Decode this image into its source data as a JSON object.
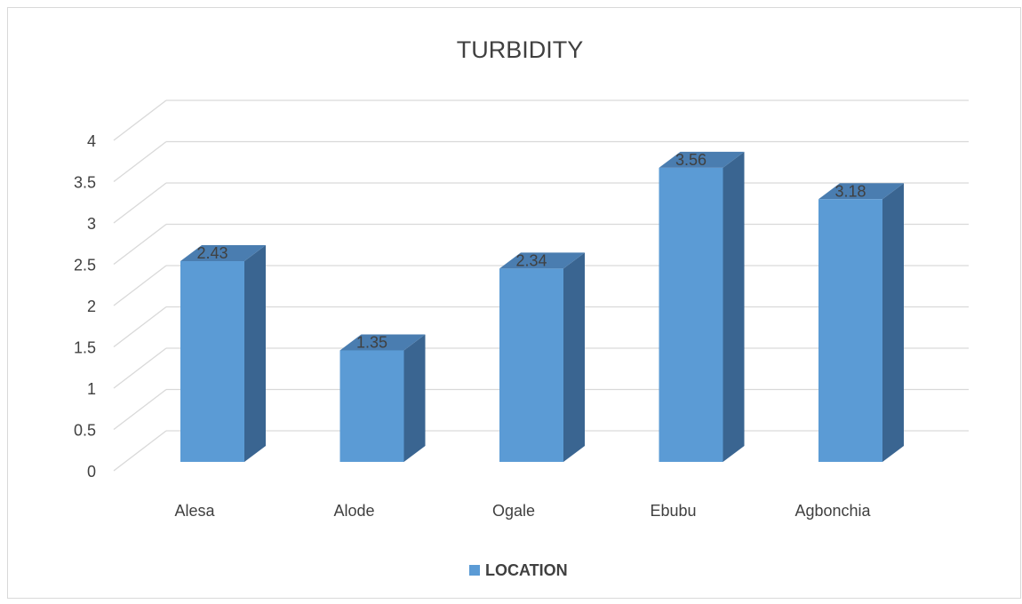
{
  "chart_data": {
    "type": "bar3d",
    "title": "TURBIDITY",
    "categories": [
      "Alesa",
      "Alode",
      "Ogale",
      "Ebubu",
      "Agbonchia"
    ],
    "series": [
      {
        "name": "LOCATION",
        "color": "#5b9bd5",
        "values": [
          2.43,
          1.35,
          2.34,
          3.56,
          3.18
        ]
      }
    ],
    "ylim": [
      0,
      4
    ],
    "yticks": [
      0,
      0.5,
      1,
      1.5,
      2,
      2.5,
      3,
      3.5,
      4
    ],
    "grid": true,
    "legend": "bottom"
  }
}
